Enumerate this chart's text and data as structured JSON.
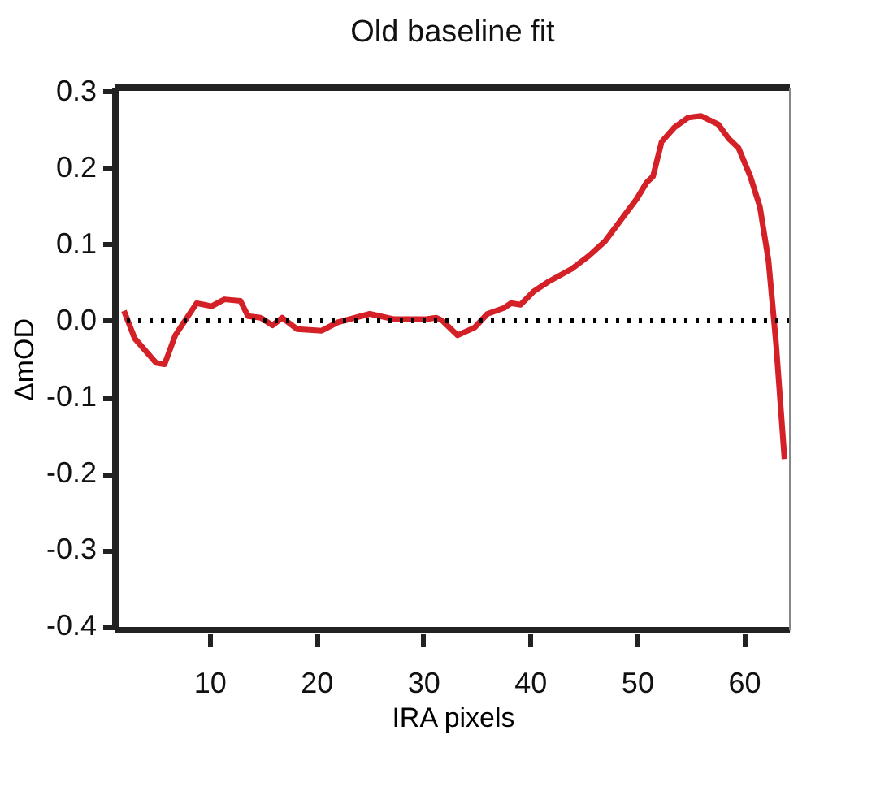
{
  "chart_data": {
    "type": "line",
    "title": "Old baseline fit",
    "xlabel": "IRA pixels",
    "ylabel": "ΔmOD",
    "xlim": [
      1.2,
      64.3
    ],
    "xticks": [
      10,
      20,
      30,
      40,
      50,
      60
    ],
    "ylim": [
      -0.405,
      0.305
    ],
    "yticks": [
      {
        "value": 0.3,
        "label": "0.3"
      },
      {
        "value": 0.2,
        "label": "0.2"
      },
      {
        "value": 0.1,
        "label": "0.1"
      },
      {
        "value": 0,
        "label": "0.0"
      },
      {
        "value": -0.1,
        "label": "-0.1"
      },
      {
        "value": -0.2,
        "label": "-0.2"
      },
      {
        "value": -0.3,
        "label": "-0.3"
      },
      {
        "value": -0.4,
        "label": "-0.4"
      }
    ],
    "grid": false,
    "marker": "none",
    "line_style": "solid",
    "ref_lines": [
      {
        "axis": "y",
        "value": 0,
        "line_style": "dotted",
        "color": "#000000"
      }
    ],
    "series": [
      {
        "color": "#d42027",
        "x": [
          2,
          3,
          5,
          5.8,
          6.8,
          8.8,
          10.2,
          11.4,
          12.9,
          13.6,
          14.8,
          15.9,
          16.8,
          18.2,
          20.5,
          22,
          25,
          27.3,
          30.3,
          31.2,
          31.8,
          33.2,
          34.8,
          36,
          37.6,
          38.2,
          39.1,
          40.3,
          41.7,
          43.9,
          45.5,
          47,
          48.5,
          50,
          50.9,
          51.5,
          52.3,
          53.5,
          54.8,
          56,
          57.6,
          58.6,
          59.5,
          60.6,
          61.5,
          62.3,
          63,
          63.8
        ],
        "values": [
          0.013,
          -0.023,
          -0.055,
          -0.057,
          -0.019,
          0.023,
          0.019,
          0.028,
          0.026,
          0.006,
          0.004,
          -0.006,
          0.004,
          -0.011,
          -0.013,
          -0.002,
          0.009,
          0.002,
          0.002,
          0.004,
          0.0,
          -0.019,
          -0.009,
          0.009,
          0.017,
          0.023,
          0.021,
          0.038,
          0.051,
          0.068,
          0.085,
          0.104,
          0.132,
          0.16,
          0.181,
          0.189,
          0.234,
          0.253,
          0.266,
          0.268,
          0.257,
          0.238,
          0.226,
          0.189,
          0.149,
          0.079,
          -0.028,
          -0.181
        ]
      }
    ]
  }
}
